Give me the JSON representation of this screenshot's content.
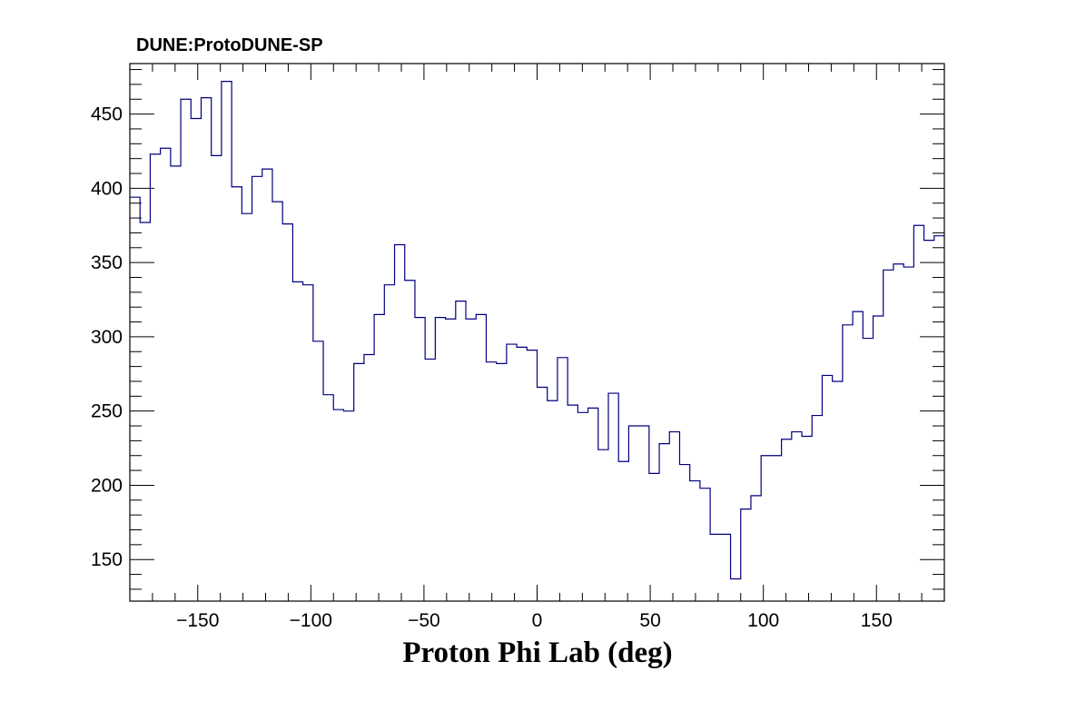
{
  "chart_data": {
    "type": "histogram",
    "title": "DUNE:ProtoDUNE-SP",
    "xlabel": "Proton Phi Lab (deg)",
    "ylabel": "",
    "xlim": [
      -180,
      180
    ],
    "ylim": [
      122,
      484
    ],
    "x_ticks": [
      -150,
      -100,
      -50,
      0,
      50,
      100,
      150
    ],
    "x_tick_labels": [
      "−150",
      "−100",
      "−50",
      "0",
      "50",
      "100",
      "150"
    ],
    "y_ticks": [
      150,
      200,
      250,
      300,
      350,
      400,
      450
    ],
    "y_tick_labels": [
      "150",
      "200",
      "250",
      "300",
      "350",
      "400",
      "450"
    ],
    "line_color": "#000080",
    "grid": false,
    "legend": "none",
    "bins": {
      "x_min": -180,
      "x_max": 180,
      "n_bins": 80,
      "counts": [
        394,
        377,
        423,
        427,
        415,
        460,
        447,
        461,
        422,
        472,
        401,
        383,
        408,
        413,
        391,
        376,
        337,
        335,
        297,
        261,
        251,
        250,
        282,
        288,
        315,
        335,
        362,
        338,
        313,
        285,
        313,
        312,
        324,
        312,
        315,
        283,
        282,
        295,
        293,
        291,
        266,
        257,
        286,
        254,
        249,
        252,
        224,
        262,
        216,
        240,
        240,
        208,
        228,
        236,
        214,
        203,
        198,
        167,
        167,
        137,
        184,
        193,
        220,
        220,
        231,
        236,
        233,
        247,
        274,
        270,
        308,
        317,
        299,
        314,
        345,
        349,
        347,
        375,
        365,
        368
      ]
    }
  }
}
